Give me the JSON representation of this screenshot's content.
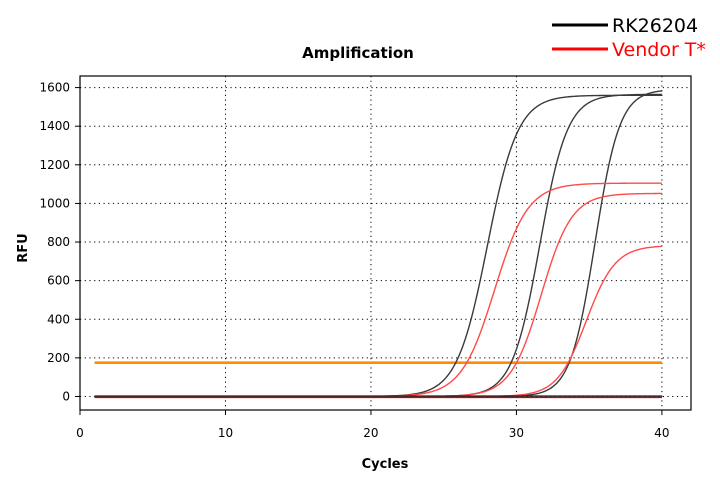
{
  "chart_data": {
    "type": "line",
    "title": "Amplification",
    "xlabel": "Cycles",
    "ylabel": "RFU",
    "xlim": [
      0,
      42
    ],
    "ylim": [
      -70,
      1660
    ],
    "x_ticks": [
      0,
      10,
      20,
      30,
      40
    ],
    "y_ticks": [
      0,
      200,
      400,
      600,
      800,
      1000,
      1200,
      1400,
      1600
    ],
    "grid": true,
    "legend_position": "top-right",
    "legend": [
      {
        "name": "RK26204",
        "color": "#000000"
      },
      {
        "name": "Vendor T*",
        "color": "#ff0000"
      }
    ],
    "threshold": {
      "value": 175,
      "color": "#ff8c00",
      "x_range": [
        1,
        40
      ]
    },
    "series": [
      {
        "group": "RK26204",
        "color": "#3a3a3a",
        "plateau": 1560,
        "midpoint": 28.0,
        "slope": 1.05,
        "baseline": 0
      },
      {
        "group": "RK26204",
        "color": "#3a3a3a",
        "plateau": 1565,
        "midpoint": 31.6,
        "slope": 0.95,
        "baseline": 0
      },
      {
        "group": "RK26204",
        "color": "#3a3a3a",
        "plateau": 1590,
        "midpoint": 35.4,
        "slope": 0.85,
        "baseline": 0
      },
      {
        "group": "Vendor T*",
        "color": "#ff4a4a",
        "plateau": 1105,
        "midpoint": 28.5,
        "slope": 1.15,
        "baseline": 0
      },
      {
        "group": "Vendor T*",
        "color": "#ff4a4a",
        "plateau": 1052,
        "midpoint": 31.7,
        "slope": 1.05,
        "baseline": 0
      },
      {
        "group": "Vendor T*",
        "color": "#ff4a4a",
        "plateau": 782,
        "midpoint": 34.8,
        "slope": 1.0,
        "baseline": 0
      },
      {
        "group": "Vendor T*",
        "color": "#cc0000",
        "plateau": 0,
        "midpoint": 0,
        "slope": 1,
        "baseline": -5
      },
      {
        "group": "RK26204",
        "color": "#222222",
        "plateau": 0,
        "midpoint": 0,
        "slope": 1,
        "baseline": 2
      }
    ],
    "x_range": [
      1,
      40
    ]
  }
}
